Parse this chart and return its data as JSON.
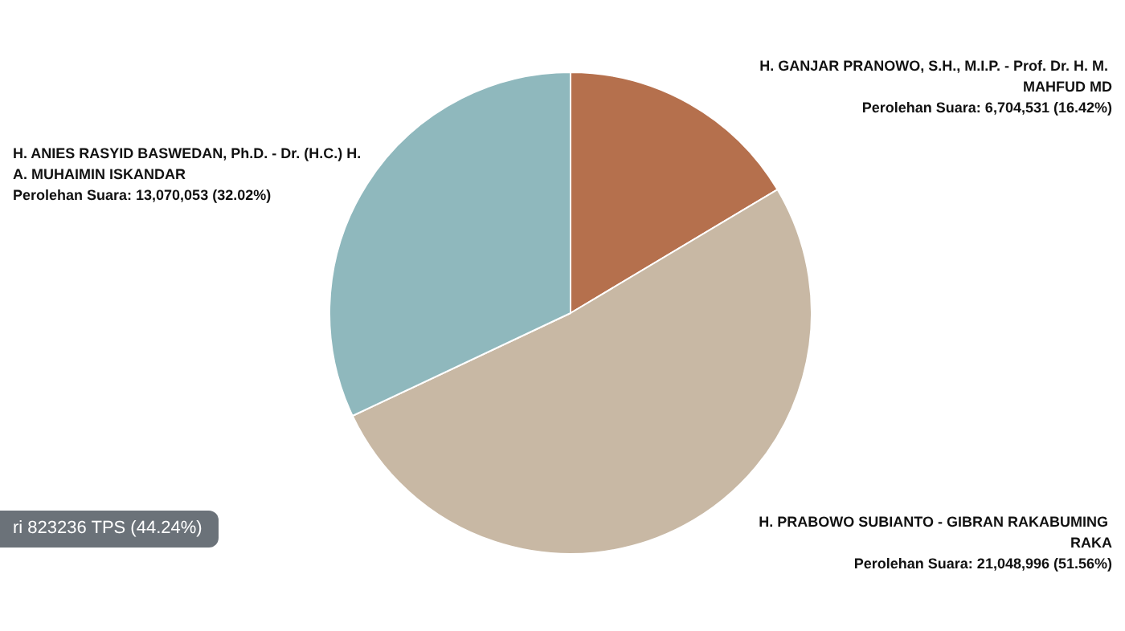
{
  "chart_data": {
    "type": "pie",
    "categories": [
      "H. GANJAR PRANOWO, S.H., M.I.P. - Prof. Dr. H. M. MAHFUD MD",
      "H. PRABOWO SUBIANTO - GIBRAN RAKABUMING RAKA",
      "H. ANIES RASYID BASWEDAN, Ph.D. - Dr. (H.C.) H. A. MUHAIMIN ISKANDAR"
    ],
    "values": [
      6704531,
      21048996,
      13070053
    ],
    "value_labels": [
      "Perolehan Suara: 6,704,531 (16.42%)",
      "Perolehan Suara: 21,048,996 (51.56%)",
      "Perolehan Suara: 13,070,053 (32.02%)"
    ],
    "colors": [
      "#b5704d",
      "#c8b8a4",
      "#8fb8bd"
    ],
    "annotations": [
      "ri 823236 TPS (44.24%)"
    ],
    "legend": false
  }
}
